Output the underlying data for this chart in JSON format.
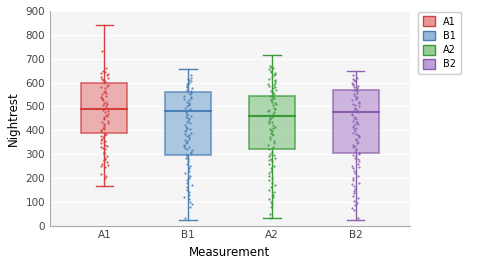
{
  "categories": [
    "A1",
    "B1",
    "A2",
    "B2"
  ],
  "colors": [
    "#d43f3f",
    "#4a7fb5",
    "#3a9a3a",
    "#8b5fad"
  ],
  "face_colors": [
    "#e89898",
    "#93b8d8",
    "#96cc96",
    "#bf9fd8"
  ],
  "xlabel": "Measurement",
  "ylabel": "Nightrest",
  "ylim": [
    0,
    900
  ],
  "yticks": [
    0,
    100,
    200,
    300,
    400,
    500,
    600,
    700,
    800,
    900
  ],
  "legend_labels": [
    "A1",
    "B1",
    "A2",
    "B2"
  ],
  "background_color": "#f5f5f5",
  "A1": {
    "median": 490,
    "q1": 390,
    "q3": 600,
    "whislo": 165,
    "whishi": 840
  },
  "B1": {
    "median": 480,
    "q1": 295,
    "q3": 560,
    "whislo": 25,
    "whishi": 655
  },
  "A2": {
    "median": 460,
    "q1": 320,
    "q3": 545,
    "whislo": 30,
    "whishi": 715
  },
  "B2": {
    "median": 475,
    "q1": 305,
    "q3": 570,
    "whislo": 25,
    "whishi": 650
  },
  "A1_points": [
    730,
    660,
    650,
    645,
    640,
    635,
    630,
    625,
    620,
    615,
    610,
    605,
    590,
    585,
    580,
    575,
    565,
    560,
    555,
    550,
    545,
    540,
    535,
    530,
    525,
    520,
    515,
    510,
    505,
    500,
    495,
    490,
    485,
    480,
    475,
    470,
    465,
    460,
    455,
    450,
    445,
    440,
    435,
    430,
    425,
    420,
    415,
    410,
    405,
    400,
    395,
    385,
    380,
    375,
    370,
    365,
    360,
    355,
    350,
    345,
    340,
    335,
    330,
    325,
    320,
    310,
    305,
    300,
    290,
    285,
    280,
    275,
    270,
    265,
    260,
    255,
    250,
    245,
    215,
    210,
    200
  ],
  "B1_points": [
    630,
    620,
    615,
    610,
    605,
    600,
    595,
    585,
    580,
    575,
    570,
    565,
    555,
    550,
    545,
    540,
    535,
    530,
    525,
    520,
    515,
    510,
    505,
    500,
    495,
    490,
    485,
    480,
    475,
    470,
    465,
    460,
    455,
    450,
    445,
    440,
    435,
    430,
    420,
    415,
    410,
    405,
    400,
    395,
    390,
    385,
    380,
    375,
    370,
    365,
    360,
    355,
    350,
    345,
    340,
    335,
    330,
    325,
    320,
    315,
    310,
    305,
    300,
    290,
    285,
    280,
    270,
    260,
    250,
    240,
    230,
    220,
    210,
    200,
    190,
    180,
    170,
    160,
    150,
    140,
    130,
    120,
    110,
    100,
    90,
    80,
    30
  ],
  "A2_points": [
    670,
    665,
    660,
    655,
    650,
    645,
    640,
    635,
    630,
    625,
    615,
    610,
    605,
    600,
    595,
    590,
    585,
    580,
    575,
    570,
    565,
    560,
    550,
    545,
    540,
    535,
    530,
    525,
    520,
    515,
    510,
    505,
    495,
    490,
    485,
    480,
    475,
    470,
    465,
    460,
    455,
    450,
    445,
    440,
    435,
    430,
    420,
    415,
    410,
    405,
    400,
    395,
    390,
    385,
    380,
    370,
    365,
    355,
    345,
    340,
    330,
    320,
    310,
    300,
    295,
    290,
    285,
    280,
    275,
    270,
    260,
    250,
    240,
    230,
    220,
    210,
    200,
    190,
    180,
    170,
    160,
    150,
    140,
    130,
    120,
    110,
    100,
    90,
    80,
    50,
    30
  ],
  "B2_points": [
    630,
    620,
    615,
    610,
    605,
    600,
    595,
    590,
    585,
    580,
    575,
    570,
    565,
    555,
    550,
    545,
    540,
    535,
    530,
    525,
    520,
    515,
    510,
    505,
    500,
    495,
    490,
    485,
    480,
    475,
    470,
    465,
    455,
    450,
    445,
    440,
    435,
    430,
    425,
    420,
    415,
    410,
    405,
    395,
    390,
    385,
    380,
    375,
    370,
    365,
    360,
    350,
    345,
    340,
    335,
    330,
    320,
    315,
    310,
    305,
    300,
    295,
    290,
    285,
    280,
    270,
    260,
    250,
    245,
    240,
    230,
    220,
    210,
    200,
    190,
    180,
    175,
    165,
    155,
    145,
    135,
    125,
    115,
    105,
    95,
    85,
    75,
    65,
    30
  ]
}
